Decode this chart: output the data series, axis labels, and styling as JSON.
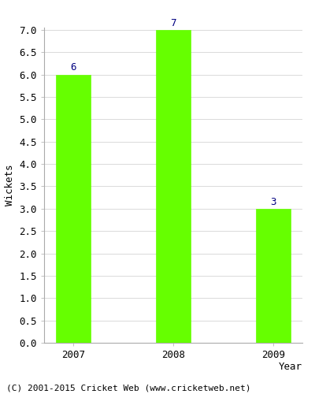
{
  "years": [
    "2007",
    "2008",
    "2009"
  ],
  "values": [
    6,
    7,
    3
  ],
  "bar_color": "#66ff00",
  "bar_edge_color": "#66ff00",
  "ylabel": "Wickets",
  "xlabel": "Year",
  "ylim_max": 7.0,
  "label_color": "#000080",
  "label_fontsize": 9,
  "tick_fontsize": 9,
  "footer_text": "(C) 2001-2015 Cricket Web (www.cricketweb.net)",
  "footer_fontsize": 8,
  "background_color": "#ffffff",
  "grid_color": "#cccccc",
  "spine_color": "#aaaaaa"
}
